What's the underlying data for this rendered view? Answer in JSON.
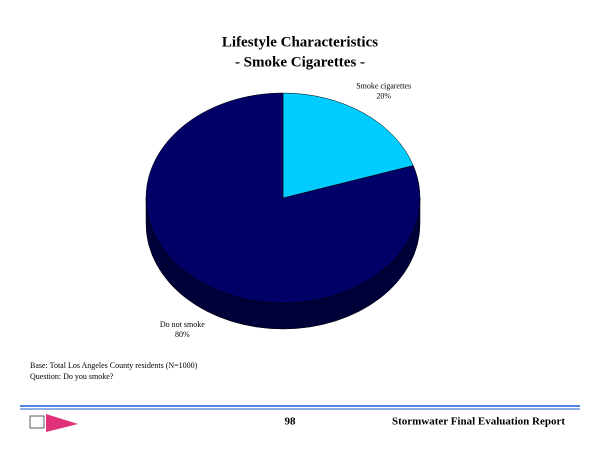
{
  "chart_data": {
    "type": "pie",
    "title": "Lifestyle Characteristics",
    "subtitle": "- Smoke Cigarettes -",
    "categories": [
      "Smoke cigarettes",
      "Do not smoke"
    ],
    "values": [
      20,
      80
    ],
    "value_labels": [
      "20%",
      "80%"
    ],
    "colors": [
      "#00ccff",
      "#000066"
    ]
  },
  "notes": [
    "Base: Total Los Angeles County residents (N=1000)",
    "Question: Do you smoke?"
  ],
  "footer": {
    "page": "98",
    "report": "Stormwater Final Evaluation Report"
  }
}
